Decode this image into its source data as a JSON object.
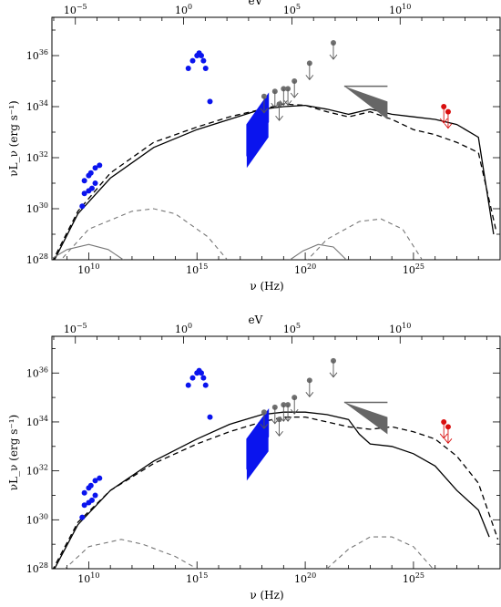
{
  "chart_data": [
    {
      "type": "scatter",
      "x_scale": "log",
      "y_scale": "log",
      "xlim_log10": [
        8.3,
        29.0
      ],
      "ylim_log10": [
        28.0,
        37.5
      ],
      "xlabel": "ν (Hz)",
      "ylabel": "νL_ν (erg s⁻¹)",
      "top_xlabel": "eV",
      "bottom_ticks": [
        "10^10",
        "10^15",
        "10^20",
        "10^25"
      ],
      "top_ticks": [
        "10^-5",
        "10^0",
        "10^5",
        "10^10"
      ],
      "left_ticks": [
        "10^28",
        "10^30",
        "10^32",
        "10^34",
        "10^36"
      ],
      "colors": {
        "radio_optical": "#0a14ee",
        "xray": "#6f6f6f",
        "gamma": "#d90f0f"
      },
      "points_blue": [
        [
          9.7,
          30.1
        ],
        [
          9.8,
          30.6
        ],
        [
          10.0,
          30.7
        ],
        [
          10.15,
          30.8
        ],
        [
          10.3,
          31.0
        ],
        [
          9.8,
          31.1
        ],
        [
          10.0,
          31.3
        ],
        [
          10.1,
          31.4
        ],
        [
          10.3,
          31.6
        ],
        [
          10.5,
          31.7
        ],
        [
          14.6,
          35.5
        ],
        [
          14.8,
          35.8
        ],
        [
          15.0,
          36.0
        ],
        [
          15.1,
          36.1
        ],
        [
          15.2,
          36.0
        ],
        [
          15.3,
          35.8
        ],
        [
          15.4,
          35.5
        ],
        [
          15.6,
          34.2
        ]
      ],
      "points_gray": [
        [
          18.1,
          34.4
        ],
        [
          18.6,
          34.6
        ],
        [
          19.0,
          34.7
        ],
        [
          19.2,
          34.7
        ],
        [
          18.8,
          34.1
        ],
        [
          19.5,
          35.0
        ],
        [
          20.2,
          35.7
        ],
        [
          21.3,
          36.5
        ]
      ],
      "points_red": [
        [
          26.4,
          34.0
        ],
        [
          26.6,
          33.8
        ]
      ],
      "series": [
        {
          "line": "solid",
          "points": [
            [
              8.3,
              27.8
            ],
            [
              9.5,
              29.8
            ],
            [
              11,
              31.2
            ],
            [
              13,
              32.4
            ],
            [
              15,
              33.1
            ],
            [
              16.5,
              33.5
            ],
            [
              18,
              33.9
            ],
            [
              19,
              34.0
            ],
            [
              20,
              34.05
            ],
            [
              21,
              33.9
            ],
            [
              22,
              33.7
            ],
            [
              23,
              33.9
            ],
            [
              24,
              33.7
            ],
            [
              25,
              33.6
            ],
            [
              26,
              33.5
            ],
            [
              27,
              33.3
            ],
            [
              28,
              32.8
            ],
            [
              28.7,
              29.0
            ]
          ]
        },
        {
          "line": "dashed",
          "points": [
            [
              8.3,
              27.9
            ],
            [
              9.5,
              29.9
            ],
            [
              11,
              31.4
            ],
            [
              13,
              32.6
            ],
            [
              15,
              33.2
            ],
            [
              16.5,
              33.6
            ],
            [
              18,
              33.9
            ],
            [
              19,
              34.1
            ],
            [
              20,
              34.05
            ],
            [
              21,
              33.8
            ],
            [
              22,
              33.6
            ],
            [
              23,
              33.8
            ],
            [
              24,
              33.5
            ],
            [
              25,
              33.1
            ],
            [
              26,
              32.9
            ],
            [
              27,
              32.6
            ],
            [
              28,
              32.2
            ],
            [
              28.8,
              29.2
            ]
          ]
        },
        {
          "line": "gray-dashed",
          "points": [
            [
              8.3,
              27.6
            ],
            [
              10,
              29.2
            ],
            [
              12,
              29.9
            ],
            [
              13,
              30.0
            ],
            [
              14,
              29.8
            ],
            [
              15.5,
              28.9
            ],
            [
              16.4,
              28.0
            ]
          ]
        },
        {
          "line": "gray-dashed",
          "points": [
            [
              20,
              27.9
            ],
            [
              21,
              28.8
            ],
            [
              22.5,
              29.5
            ],
            [
              23.5,
              29.6
            ],
            [
              24.5,
              29.2
            ],
            [
              25.4,
              28.0
            ]
          ]
        },
        {
          "line": "gray-solid",
          "points": [
            [
              8.3,
              28.05
            ],
            [
              9.0,
              28.4
            ],
            [
              10.0,
              28.6
            ],
            [
              10.9,
              28.4
            ],
            [
              11.6,
              28.0
            ]
          ]
        },
        {
          "line": "gray-solid",
          "points": [
            [
              19.3,
              28.0
            ],
            [
              19.9,
              28.35
            ],
            [
              20.6,
              28.6
            ],
            [
              21.3,
              28.5
            ],
            [
              21.9,
              28.0
            ]
          ]
        }
      ]
    },
    {
      "type": "scatter",
      "x_scale": "log",
      "y_scale": "log",
      "xlim_log10": [
        8.3,
        29.0
      ],
      "ylim_log10": [
        28.0,
        37.5
      ],
      "xlabel": "ν (Hz)",
      "ylabel": "νL_ν (erg s⁻¹)",
      "top_xlabel": "eV",
      "bottom_ticks": [
        "10^10",
        "10^15",
        "10^20",
        "10^25"
      ],
      "top_ticks": [
        "10^-5",
        "10^0",
        "10^5",
        "10^10"
      ],
      "left_ticks": [
        "10^28",
        "10^30",
        "10^32",
        "10^34",
        "10^36"
      ],
      "colors": {
        "radio_optical": "#0a14ee",
        "xray": "#6f6f6f",
        "gamma": "#d90f0f"
      },
      "points_blue": [
        [
          9.7,
          30.1
        ],
        [
          9.8,
          30.6
        ],
        [
          10.0,
          30.7
        ],
        [
          10.15,
          30.8
        ],
        [
          10.3,
          31.0
        ],
        [
          9.8,
          31.1
        ],
        [
          10.0,
          31.3
        ],
        [
          10.1,
          31.4
        ],
        [
          10.3,
          31.6
        ],
        [
          10.5,
          31.7
        ],
        [
          14.6,
          35.5
        ],
        [
          14.8,
          35.8
        ],
        [
          15.0,
          36.0
        ],
        [
          15.1,
          36.1
        ],
        [
          15.2,
          36.0
        ],
        [
          15.3,
          35.8
        ],
        [
          15.4,
          35.5
        ],
        [
          15.6,
          34.2
        ]
      ],
      "points_gray": [
        [
          18.1,
          34.4
        ],
        [
          18.6,
          34.6
        ],
        [
          19.0,
          34.7
        ],
        [
          19.2,
          34.7
        ],
        [
          18.8,
          34.1
        ],
        [
          19.5,
          35.0
        ],
        [
          20.2,
          35.7
        ],
        [
          21.3,
          36.5
        ]
      ],
      "points_red": [
        [
          26.4,
          34.0
        ],
        [
          26.6,
          33.8
        ]
      ],
      "series": [
        {
          "line": "solid",
          "points": [
            [
              8.3,
              27.8
            ],
            [
              9.5,
              29.8
            ],
            [
              11,
              31.2
            ],
            [
              13,
              32.4
            ],
            [
              15,
              33.3
            ],
            [
              16.5,
              33.9
            ],
            [
              18,
              34.3
            ],
            [
              19,
              34.4
            ],
            [
              20,
              34.4
            ],
            [
              21,
              34.3
            ],
            [
              22,
              34.1
            ],
            [
              22.5,
              33.5
            ],
            [
              23,
              33.1
            ],
            [
              24,
              33.0
            ],
            [
              25,
              32.7
            ],
            [
              26,
              32.2
            ],
            [
              27,
              31.2
            ],
            [
              28,
              30.4
            ],
            [
              28.5,
              29.3
            ]
          ]
        },
        {
          "line": "dashed",
          "points": [
            [
              8.3,
              27.9
            ],
            [
              9.5,
              29.9
            ],
            [
              11,
              31.2
            ],
            [
              13,
              32.3
            ],
            [
              15,
              33.1
            ],
            [
              16.5,
              33.6
            ],
            [
              18,
              34.0
            ],
            [
              19,
              34.2
            ],
            [
              20,
              34.2
            ],
            [
              21,
              34.0
            ],
            [
              22,
              33.8
            ],
            [
              23,
              33.7
            ],
            [
              24,
              33.8
            ],
            [
              25,
              33.6
            ],
            [
              26,
              33.3
            ],
            [
              27,
              32.6
            ],
            [
              28,
              31.5
            ],
            [
              28.9,
              29.2
            ]
          ]
        },
        {
          "line": "gray-dashed",
          "points": [
            [
              8.3,
              27.5
            ],
            [
              10,
              28.9
            ],
            [
              11.5,
              29.2
            ],
            [
              12.5,
              29.0
            ],
            [
              14,
              28.5
            ],
            [
              15,
              28.0
            ]
          ]
        },
        {
          "line": "gray-dashed",
          "points": [
            [
              21,
              28.0
            ],
            [
              22,
              28.8
            ],
            [
              23,
              29.3
            ],
            [
              24,
              29.3
            ],
            [
              25,
              28.9
            ],
            [
              25.9,
              28.0
            ]
          ]
        }
      ]
    }
  ]
}
